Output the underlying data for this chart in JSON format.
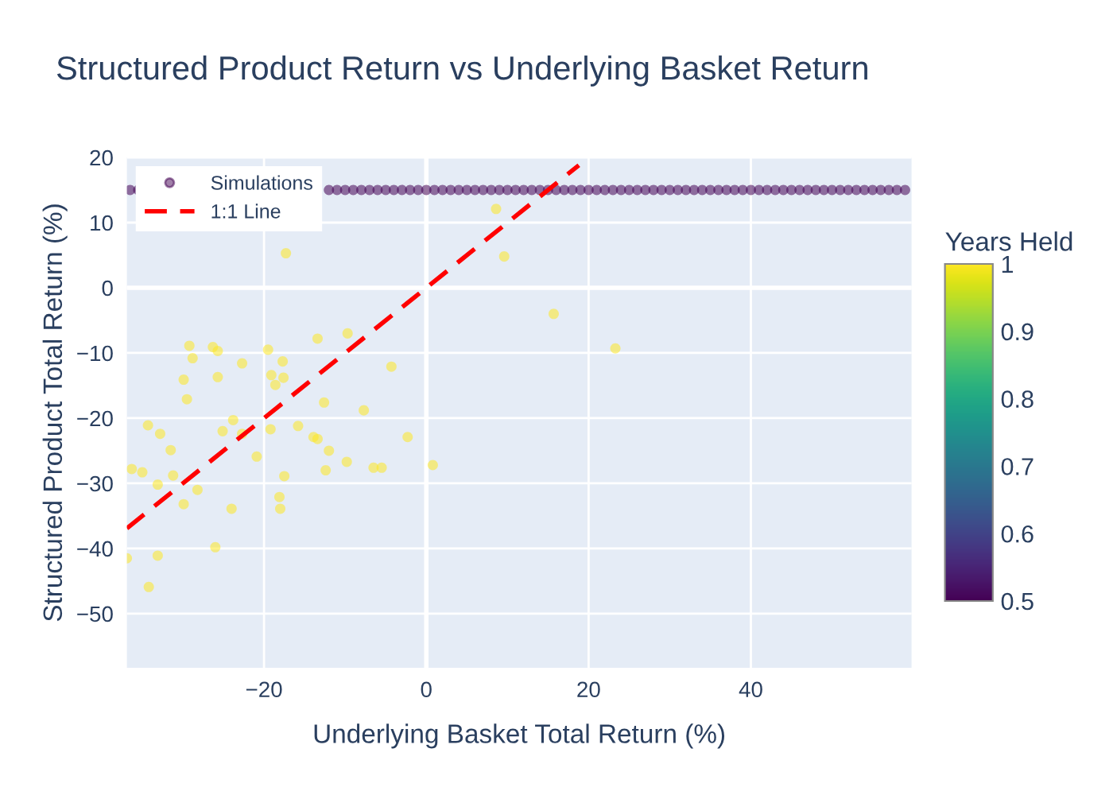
{
  "chart_data": {
    "type": "scatter",
    "title": "Structured Product Return vs Underlying Basket Return",
    "xlabel": "Underlying Basket Total Return (%)",
    "ylabel": "Structured Product Total Return (%)",
    "clabel": "Years Held",
    "xlim": [
      -36.9,
      59.8
    ],
    "ylim": [
      -58.3,
      20
    ],
    "xticks": [
      {
        "value": -20,
        "label": "−20"
      },
      0,
      20,
      40
    ],
    "yticks": [
      {
        "value": -50,
        "label": "−50"
      },
      {
        "value": -40,
        "label": "−40"
      },
      {
        "value": -30,
        "label": "−30"
      },
      {
        "value": -20,
        "label": "−20"
      },
      {
        "value": -10,
        "label": "−10"
      },
      0,
      10,
      20
    ],
    "clim": [
      0.5,
      1
    ],
    "cticks": [
      0.5,
      0.6,
      0.7,
      0.8,
      0.9,
      1
    ],
    "grid": true,
    "legend": "top left",
    "series": [
      {
        "name": "Simulations",
        "marker": "circle",
        "x": [
          -36.5,
          -35.5,
          -12,
          -11,
          -10,
          -9,
          -8,
          -7,
          -6,
          -5,
          -4,
          -3,
          -2,
          -1,
          0,
          1,
          2,
          3,
          4,
          5,
          6,
          7,
          8,
          9,
          10,
          11,
          12,
          13,
          14,
          15,
          16,
          17,
          18,
          19,
          20,
          21,
          22,
          23,
          24,
          25,
          26,
          27,
          28,
          29,
          30,
          31,
          32,
          33,
          34,
          35,
          36,
          37,
          38,
          39,
          40,
          41,
          42,
          43,
          44,
          45,
          46,
          47,
          48,
          49,
          50,
          51,
          52,
          53,
          54,
          55,
          56,
          57,
          58,
          59,
          -36.9,
          -36.3,
          -35.0,
          -34.3,
          -34.2,
          -33.1,
          -33.1,
          -32.8,
          -31.5,
          -31.2,
          -29.9,
          -29.9,
          -29.5,
          -29.2,
          -28.8,
          -28.2,
          -26.3,
          -25.7,
          -25.7,
          -26.0,
          -25.1,
          -24.0,
          -23.8,
          -22.7,
          -22.7,
          -20.9,
          -19.5,
          -19.2,
          -19.1,
          -18.6,
          -18.1,
          -18.0,
          -17.7,
          -17.6,
          -17.5,
          -15.8,
          -13.9,
          -13.4,
          -13.4,
          -12.6,
          -12.4,
          -12.0,
          -9.8,
          -9.7,
          -7.7,
          -6.5,
          -5.5,
          -4.3,
          -2.3,
          0.8,
          -17.3,
          8.6,
          9.6,
          15.7,
          23.3
        ],
        "values": [
          15,
          15,
          15,
          15,
          15,
          15,
          15,
          15,
          15,
          15,
          15,
          15,
          15,
          15,
          15,
          15,
          15,
          15,
          15,
          15,
          15,
          15,
          15,
          15,
          15,
          15,
          15,
          15,
          15,
          15,
          15,
          15,
          15,
          15,
          15,
          15,
          15,
          15,
          15,
          15,
          15,
          15,
          15,
          15,
          15,
          15,
          15,
          15,
          15,
          15,
          15,
          15,
          15,
          15,
          15,
          15,
          15,
          15,
          15,
          15,
          15,
          15,
          15,
          15,
          15,
          15,
          15,
          15,
          15,
          15,
          15,
          15,
          15,
          15,
          -41.5,
          -27.8,
          -28.3,
          -21.1,
          -45.9,
          -30.2,
          -41.1,
          -22.4,
          -24.9,
          -28.8,
          -14.1,
          -33.2,
          -17.1,
          -8.9,
          -10.8,
          -31.0,
          -9.1,
          -9.7,
          -13.7,
          -39.8,
          -22.0,
          -33.9,
          -20.3,
          -11.6,
          -22.4,
          -25.9,
          -9.5,
          -21.7,
          -13.4,
          -14.9,
          -32.1,
          -33.9,
          -11.3,
          -13.8,
          -28.9,
          -21.2,
          -22.9,
          -23.2,
          -7.8,
          -17.6,
          -28.0,
          -25.0,
          -26.7,
          -7.0,
          -18.8,
          -27.6,
          -27.6,
          -12.1,
          -22.9,
          -27.2,
          5.3,
          12.1,
          4.8,
          -4.0,
          -9.3
        ],
        "colors": [
          "#440154",
          "#440154",
          "#440154",
          "#440154",
          "#440154",
          "#440154",
          "#440154",
          "#440154",
          "#440154",
          "#440154",
          "#440154",
          "#440154",
          "#440154",
          "#440154",
          "#440154",
          "#440154",
          "#440154",
          "#440154",
          "#440154",
          "#440154",
          "#440154",
          "#440154",
          "#440154",
          "#440154",
          "#440154",
          "#440154",
          "#440154",
          "#440154",
          "#440154",
          "#440154",
          "#440154",
          "#440154",
          "#440154",
          "#440154",
          "#440154",
          "#440154",
          "#440154",
          "#440154",
          "#440154",
          "#440154",
          "#440154",
          "#440154",
          "#440154",
          "#440154",
          "#440154",
          "#440154",
          "#440154",
          "#440154",
          "#440154",
          "#440154",
          "#440154",
          "#440154",
          "#440154",
          "#440154",
          "#440154",
          "#440154",
          "#440154",
          "#440154",
          "#440154",
          "#440154",
          "#440154",
          "#440154",
          "#440154",
          "#440154",
          "#440154",
          "#440154",
          "#440154",
          "#440154",
          "#440154",
          "#440154",
          "#440154",
          "#440154",
          "#440154",
          "#440154",
          "#fde725",
          "#fde725",
          "#fde725",
          "#fde725",
          "#fde725",
          "#fde725",
          "#fde725",
          "#fde725",
          "#fde725",
          "#fde725",
          "#fde725",
          "#fde725",
          "#fde725",
          "#fde725",
          "#fde725",
          "#fde725",
          "#fde725",
          "#fde725",
          "#fde725",
          "#fde725",
          "#fde725",
          "#fde725",
          "#fde725",
          "#fde725",
          "#fde725",
          "#fde725",
          "#fde725",
          "#fde725",
          "#fde725",
          "#fde725",
          "#fde725",
          "#fde725",
          "#fde725",
          "#fde725",
          "#fde725",
          "#fde725",
          "#fde725",
          "#fde725",
          "#fde725",
          "#fde725",
          "#fde725",
          "#fde725",
          "#fde725",
          "#fde725",
          "#fde725",
          "#fde725",
          "#fde725",
          "#fde725",
          "#fde725",
          "#fde725",
          "#fde725",
          "#fde725",
          "#fde725",
          "#fde725",
          "#fde725"
        ]
      },
      {
        "name": "1:1 Line",
        "type": "line",
        "color": "#ff0000",
        "line_style": "dashed",
        "marker": "none",
        "x": [
          -36.9,
          18.8
        ],
        "values": [
          -36.9,
          18.8
        ]
      }
    ]
  }
}
